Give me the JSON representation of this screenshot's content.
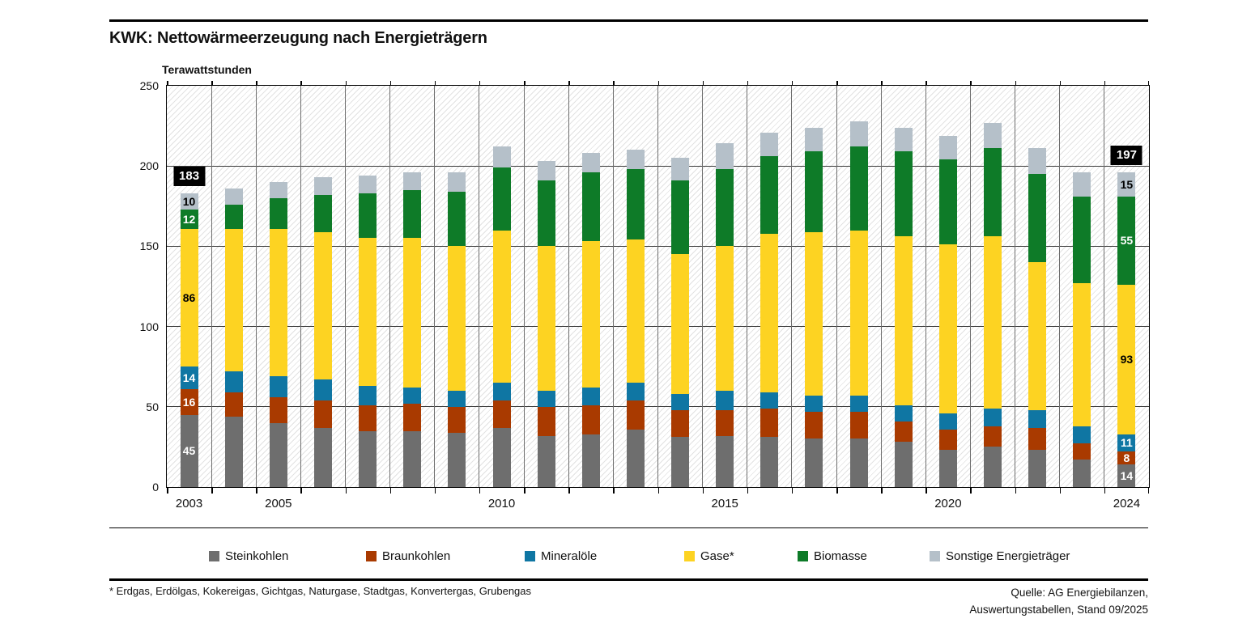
{
  "header": {
    "title": "KWK: Nettowärmeerzeugung nach Energieträgern"
  },
  "chart_data": {
    "type": "bar",
    "stacked": true,
    "title": "KWK: Nettowärmeerzeugung nach Energieträgern",
    "xlabel": "",
    "ylabel": "Terawattstunden",
    "ylim": [
      0,
      250
    ],
    "yticks": [
      0,
      50,
      100,
      150,
      200,
      250
    ],
    "grid": true,
    "legend_position": "bottom",
    "categories": [
      "2003",
      "2004",
      "2005",
      "2006",
      "2007",
      "2008",
      "2009",
      "2010",
      "2011",
      "2012",
      "2013",
      "2014",
      "2015",
      "2016",
      "2017",
      "2018",
      "2019",
      "2020",
      "2021",
      "2022",
      "2023",
      "2024"
    ],
    "xtick_years": [
      "2003",
      "2005",
      "2010",
      "2015",
      "2020",
      "2024"
    ],
    "series": [
      {
        "name": "Steinkohlen",
        "color": "#6e6e6e",
        "label_color": "#ffffff",
        "values": [
          45,
          44,
          40,
          37,
          35,
          35,
          34,
          37,
          32,
          33,
          36,
          31,
          32,
          31,
          30,
          30,
          28,
          23,
          25,
          23,
          17,
          14
        ]
      },
      {
        "name": "Braunkohlen",
        "color": "#a93a00",
        "label_color": "#ffffff",
        "values": [
          16,
          15,
          16,
          17,
          16,
          17,
          16,
          17,
          18,
          18,
          18,
          17,
          16,
          18,
          17,
          17,
          13,
          13,
          13,
          14,
          10,
          8
        ]
      },
      {
        "name": "Mineralöle",
        "color": "#0f76a3",
        "label_color": "#ffffff",
        "values": [
          14,
          13,
          13,
          13,
          12,
          10,
          10,
          11,
          10,
          11,
          11,
          10,
          12,
          10,
          10,
          10,
          10,
          10,
          11,
          11,
          11,
          11
        ]
      },
      {
        "name": "Gase*",
        "color": "#fdd322",
        "label_color": "#000000",
        "values": [
          86,
          89,
          92,
          92,
          92,
          93,
          90,
          95,
          90,
          91,
          89,
          87,
          90,
          99,
          102,
          103,
          105,
          105,
          107,
          92,
          89,
          93
        ]
      },
      {
        "name": "Biomasse",
        "color": "#0e7b28",
        "label_color": "#ffffff",
        "values": [
          12,
          15,
          19,
          23,
          28,
          30,
          34,
          39,
          41,
          43,
          44,
          46,
          48,
          48,
          50,
          52,
          53,
          53,
          55,
          55,
          54,
          55
        ]
      },
      {
        "name": "Sonstige Energieträger",
        "color": "#b5c0c9",
        "label_color": "#000000",
        "values": [
          10,
          10,
          10,
          11,
          11,
          11,
          12,
          13,
          12,
          12,
          12,
          14,
          16,
          15,
          15,
          16,
          15,
          15,
          16,
          16,
          15,
          15
        ]
      }
    ],
    "annotations": {
      "totals": [
        {
          "year": "2003",
          "label": "183"
        },
        {
          "year": "2024",
          "label": "197"
        }
      ],
      "segment_labeled_years": [
        "2003",
        "2024"
      ]
    }
  },
  "footnote": "* Erdgas, Erdölgas, Kokereigas, Gichtgas, Naturgase, Stadtgas, Konvertergas, Grubengas",
  "source": {
    "line1": "Quelle: AG Energiebilanzen,",
    "line2": "Auswertungstabellen, Stand 09/2025"
  }
}
